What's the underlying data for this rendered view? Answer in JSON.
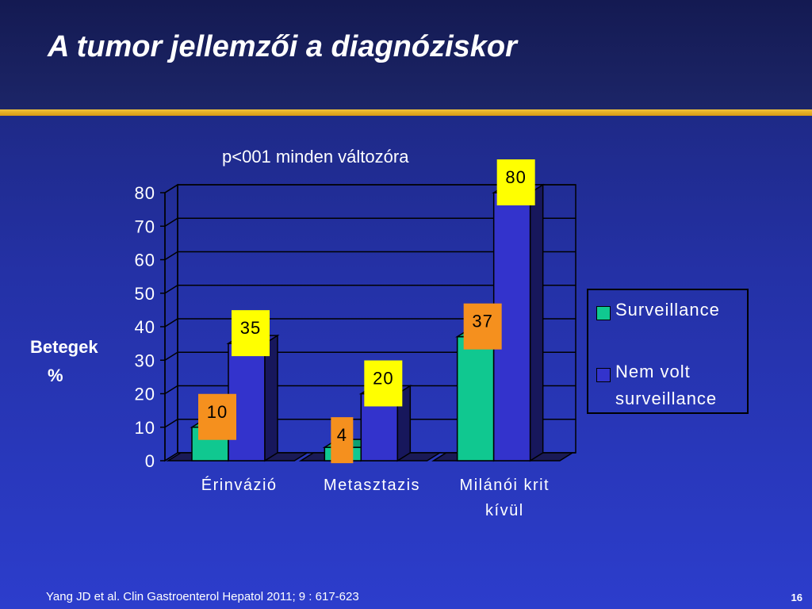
{
  "slide": {
    "title": "A tumor jellemzői a diagnóziskor",
    "subtitle": "p<001 minden változóra",
    "ylabel_line1": "Betegek",
    "ylabel_line2": "%",
    "footer": "Yang JD et al. Clin Gastroenterol Hepatol  2011; 9 : 617-623",
    "page_number": "16"
  },
  "colors": {
    "surveillance": "#10c890",
    "no_surveillance": "#3333cc",
    "label_surveillance": "#f5901e",
    "label_no_surveillance": "#ffff00",
    "accent_gold": "#e8ae20"
  },
  "chart_data": {
    "type": "bar",
    "categories": [
      [
        "Érinvázió"
      ],
      [
        "Metasztazis"
      ],
      [
        "Milánói krit",
        "kívül"
      ]
    ],
    "series": [
      {
        "name": "Surveillance",
        "values": [
          10,
          4,
          37
        ]
      },
      {
        "name": "Nem volt surveillance",
        "values": [
          35,
          20,
          80
        ]
      }
    ],
    "ylim": [
      0,
      80
    ],
    "yticks": [
      0,
      10,
      20,
      30,
      40,
      50,
      60,
      70,
      80
    ],
    "grid": true,
    "legend_position": "right",
    "data_labels": true
  },
  "legend": {
    "items": [
      {
        "lines": [
          "Surveillance"
        ]
      },
      {
        "lines": [
          "Nem volt",
          "surveillance"
        ]
      }
    ]
  }
}
